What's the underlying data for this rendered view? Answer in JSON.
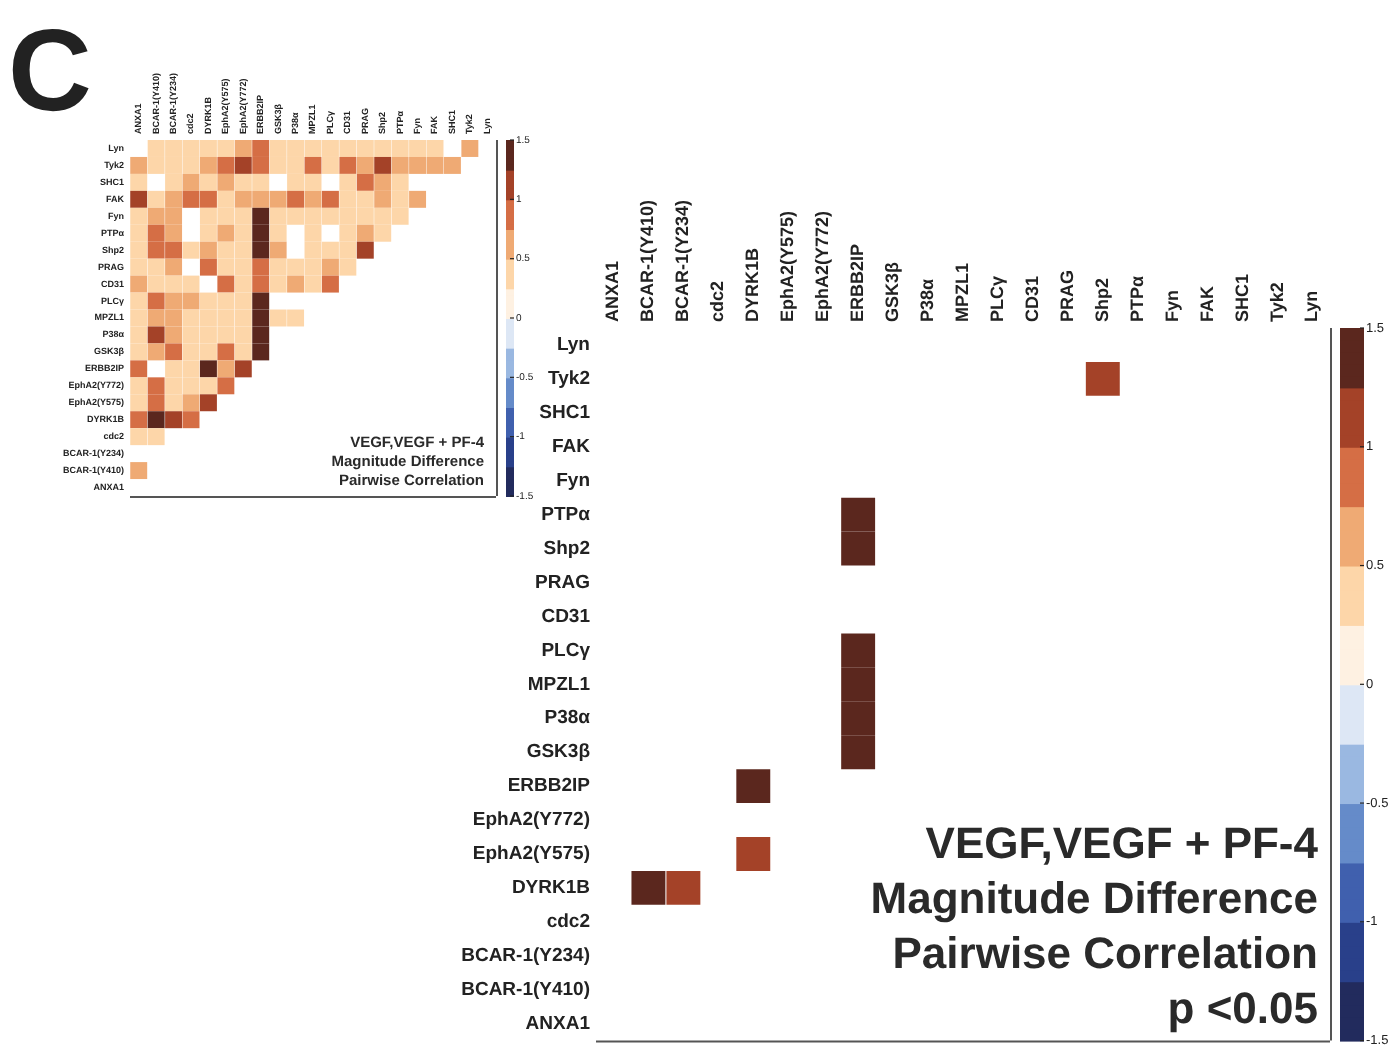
{
  "chart_data": [
    {
      "type": "heatmap",
      "title": "C",
      "categories": [
        "ANXA1",
        "BCAR-1(Y410)",
        "BCAR-1(Y234)",
        "cdc2",
        "DYRK1B",
        "EphA2(Y575)",
        "EphA2(Y772)",
        "ERBB2IP",
        "GSK3β",
        "P38α",
        "MPZL1",
        "PLCγ",
        "CD31",
        "PRAG",
        "Shp2",
        "PTPα",
        "Fyn",
        "FAK",
        "SHC1",
        "Tyk2",
        "Lyn"
      ],
      "y_categories": [
        "Lyn",
        "Tyk2",
        "SHC1",
        "FAK",
        "Fyn",
        "PTPα",
        "Shp2",
        "PRAG",
        "CD31",
        "PLCγ",
        "MPZL1",
        "P38α",
        "GSK3β",
        "ERBB2IP",
        "EphA2(Y772)",
        "EphA2(Y575)",
        "DYRK1B",
        "cdc2",
        "BCAR-1(Y234)",
        "BCAR-1(Y410)",
        "ANXA1"
      ],
      "cells": [
        [
          null,
          0.3,
          0.3,
          0.3,
          0.3,
          0.3,
          0.6,
          0.9,
          0.3,
          0.3,
          0.3,
          0.3,
          0.3,
          0.3,
          0.3,
          0.3,
          0.3,
          0.3,
          null,
          0.6,
          null
        ],
        [
          0.6,
          0.3,
          0.3,
          0.3,
          0.6,
          0.9,
          1.2,
          0.9,
          0.3,
          0.3,
          0.9,
          0.3,
          0.9,
          0.6,
          1.1,
          0.6,
          0.6,
          0.6,
          0.6,
          null,
          null
        ],
        [
          0.3,
          null,
          0.3,
          0.6,
          0.3,
          0.6,
          0.3,
          0.3,
          null,
          0.3,
          0.3,
          null,
          0.3,
          0.9,
          0.6,
          0.3,
          null,
          null,
          null,
          null,
          null
        ],
        [
          1.2,
          0.3,
          0.6,
          0.9,
          0.9,
          0.3,
          0.6,
          0.6,
          0.6,
          0.9,
          0.6,
          0.9,
          0.3,
          0.3,
          0.6,
          0.3,
          0.6,
          null,
          null,
          null,
          null
        ],
        [
          0.3,
          0.6,
          0.6,
          null,
          0.3,
          0.3,
          0.3,
          1.4,
          0.3,
          0.3,
          0.3,
          0.3,
          0.3,
          0.3,
          0.3,
          0.3,
          null,
          null,
          null,
          null,
          null
        ],
        [
          0.3,
          0.9,
          0.6,
          null,
          0.3,
          0.6,
          0.3,
          1.4,
          0.3,
          null,
          0.3,
          null,
          0.3,
          0.6,
          0.3,
          null,
          null,
          null,
          null,
          null,
          null
        ],
        [
          0.3,
          0.9,
          0.9,
          0.3,
          0.6,
          0.3,
          0.3,
          1.4,
          0.6,
          null,
          0.3,
          0.3,
          0.3,
          1.2,
          null,
          null,
          null,
          null,
          null,
          null,
          null
        ],
        [
          0.3,
          0.3,
          0.6,
          null,
          0.9,
          0.3,
          0.3,
          0.9,
          0.3,
          0.3,
          0.3,
          0.6,
          0.3,
          null,
          null,
          null,
          null,
          null,
          null,
          null,
          null
        ],
        [
          0.6,
          0.3,
          0.3,
          0.3,
          null,
          0.9,
          0.3,
          0.9,
          0.3,
          0.6,
          0.3,
          0.9,
          null,
          null,
          null,
          null,
          null,
          null,
          null,
          null,
          null
        ],
        [
          0.3,
          0.9,
          0.6,
          0.6,
          0.3,
          0.3,
          0.3,
          1.4,
          null,
          null,
          null,
          null,
          null,
          null,
          null,
          null,
          null,
          null,
          null,
          null,
          null
        ],
        [
          0.3,
          0.6,
          0.6,
          0.3,
          0.3,
          0.3,
          0.3,
          1.4,
          0.3,
          0.3,
          null,
          null,
          null,
          null,
          null,
          null,
          null,
          null,
          null,
          null,
          null
        ],
        [
          0.3,
          1.2,
          0.6,
          0.3,
          0.3,
          0.3,
          0.3,
          1.4,
          null,
          null,
          null,
          null,
          null,
          null,
          null,
          null,
          null,
          null,
          null,
          null,
          null
        ],
        [
          0.3,
          0.6,
          0.9,
          0.3,
          0.3,
          0.9,
          0.3,
          1.4,
          null,
          null,
          null,
          null,
          null,
          null,
          null,
          null,
          null,
          null,
          null,
          null,
          null
        ],
        [
          0.9,
          null,
          0.3,
          0.3,
          1.4,
          0.6,
          1.2,
          null,
          null,
          null,
          null,
          null,
          null,
          null,
          null,
          null,
          null,
          null,
          null,
          null,
          null
        ],
        [
          0.3,
          0.9,
          0.3,
          0.3,
          0.3,
          0.9,
          null,
          null,
          null,
          null,
          null,
          null,
          null,
          null,
          null,
          null,
          null,
          null,
          null,
          null,
          null
        ],
        [
          0.3,
          0.9,
          0.3,
          0.6,
          1.2,
          null,
          null,
          null,
          null,
          null,
          null,
          null,
          null,
          null,
          null,
          null,
          null,
          null,
          null,
          null,
          null
        ],
        [
          0.9,
          1.4,
          1.2,
          0.9,
          null,
          null,
          null,
          null,
          null,
          null,
          null,
          null,
          null,
          null,
          null,
          null,
          null,
          null,
          null,
          null,
          null
        ],
        [
          0.3,
          0.3,
          null,
          null,
          null,
          null,
          null,
          null,
          null,
          null,
          null,
          null,
          null,
          null,
          null,
          null,
          null,
          null,
          null,
          null,
          null
        ],
        [
          null,
          null,
          null,
          null,
          null,
          null,
          null,
          null,
          null,
          null,
          null,
          null,
          null,
          null,
          null,
          null,
          null,
          null,
          null,
          null,
          null
        ],
        [
          0.6,
          null,
          null,
          null,
          null,
          null,
          null,
          null,
          null,
          null,
          null,
          null,
          null,
          null,
          null,
          null,
          null,
          null,
          null,
          null,
          null
        ],
        [
          null,
          null,
          null,
          null,
          null,
          null,
          null,
          null,
          null,
          null,
          null,
          null,
          null,
          null,
          null,
          null,
          null,
          null,
          null,
          null,
          null
        ]
      ],
      "clim": [
        -1.5,
        1.5
      ],
      "cticks": [
        -1.5,
        -1,
        -0.5,
        0,
        0.5,
        1,
        1.5
      ],
      "annotations": [
        "VEGF,VEGF + PF-4",
        "Magnitude Difference",
        "Pairwise Correlation"
      ]
    },
    {
      "type": "heatmap",
      "categories": [
        "ANXA1",
        "BCAR-1(Y410)",
        "BCAR-1(Y234)",
        "cdc2",
        "DYRK1B",
        "EphA2(Y575)",
        "EphA2(Y772)",
        "ERBB2IP",
        "GSK3β",
        "P38α",
        "MPZL1",
        "PLCγ",
        "CD31",
        "PRAG",
        "Shp2",
        "PTPα",
        "Fyn",
        "FAK",
        "SHC1",
        "Tyk2",
        "Lyn"
      ],
      "y_categories": [
        "Lyn",
        "Tyk2",
        "SHC1",
        "FAK",
        "Fyn",
        "PTPα",
        "Shp2",
        "PRAG",
        "CD31",
        "PLCγ",
        "MPZL1",
        "P38α",
        "GSK3β",
        "ERBB2IP",
        "EphA2(Y772)",
        "EphA2(Y575)",
        "DYRK1B",
        "cdc2",
        "BCAR-1(Y234)",
        "BCAR-1(Y410)",
        "ANXA1"
      ],
      "cells": [
        [
          null,
          null,
          null,
          null,
          null,
          null,
          null,
          null,
          null,
          null,
          null,
          null,
          null,
          null,
          null,
          null,
          null,
          null,
          null,
          null,
          null
        ],
        [
          null,
          null,
          null,
          null,
          null,
          null,
          null,
          null,
          null,
          null,
          null,
          null,
          null,
          null,
          1.1,
          null,
          null,
          null,
          null,
          null,
          null
        ],
        [
          null,
          null,
          null,
          null,
          null,
          null,
          null,
          null,
          null,
          null,
          null,
          null,
          null,
          null,
          null,
          null,
          null,
          null,
          null,
          null,
          null
        ],
        [
          null,
          null,
          null,
          null,
          null,
          null,
          null,
          null,
          null,
          null,
          null,
          null,
          null,
          null,
          null,
          null,
          null,
          null,
          null,
          null,
          null
        ],
        [
          null,
          null,
          null,
          null,
          null,
          null,
          null,
          null,
          null,
          null,
          null,
          null,
          null,
          null,
          null,
          null,
          null,
          null,
          null,
          null,
          null
        ],
        [
          null,
          null,
          null,
          null,
          null,
          null,
          null,
          1.4,
          null,
          null,
          null,
          null,
          null,
          null,
          null,
          null,
          null,
          null,
          null,
          null,
          null
        ],
        [
          null,
          null,
          null,
          null,
          null,
          null,
          null,
          1.4,
          null,
          null,
          null,
          null,
          null,
          null,
          null,
          null,
          null,
          null,
          null,
          null,
          null
        ],
        [
          null,
          null,
          null,
          null,
          null,
          null,
          null,
          null,
          null,
          null,
          null,
          null,
          null,
          null,
          null,
          null,
          null,
          null,
          null,
          null,
          null
        ],
        [
          null,
          null,
          null,
          null,
          null,
          null,
          null,
          null,
          null,
          null,
          null,
          null,
          null,
          null,
          null,
          null,
          null,
          null,
          null,
          null,
          null
        ],
        [
          null,
          null,
          null,
          null,
          null,
          null,
          null,
          1.4,
          null,
          null,
          null,
          null,
          null,
          null,
          null,
          null,
          null,
          null,
          null,
          null,
          null
        ],
        [
          null,
          null,
          null,
          null,
          null,
          null,
          null,
          1.4,
          null,
          null,
          null,
          null,
          null,
          null,
          null,
          null,
          null,
          null,
          null,
          null,
          null
        ],
        [
          null,
          null,
          null,
          null,
          null,
          null,
          null,
          1.4,
          null,
          null,
          null,
          null,
          null,
          null,
          null,
          null,
          null,
          null,
          null,
          null,
          null
        ],
        [
          null,
          null,
          null,
          null,
          null,
          null,
          null,
          1.4,
          null,
          null,
          null,
          null,
          null,
          null,
          null,
          null,
          null,
          null,
          null,
          null,
          null
        ],
        [
          null,
          null,
          null,
          null,
          1.4,
          null,
          null,
          null,
          null,
          null,
          null,
          null,
          null,
          null,
          null,
          null,
          null,
          null,
          null,
          null,
          null
        ],
        [
          null,
          null,
          null,
          null,
          null,
          null,
          null,
          null,
          null,
          null,
          null,
          null,
          null,
          null,
          null,
          null,
          null,
          null,
          null,
          null,
          null
        ],
        [
          null,
          null,
          null,
          null,
          1.1,
          null,
          null,
          null,
          null,
          null,
          null,
          null,
          null,
          null,
          null,
          null,
          null,
          null,
          null,
          null,
          null
        ],
        [
          null,
          1.4,
          1.1,
          null,
          null,
          null,
          null,
          null,
          null,
          null,
          null,
          null,
          null,
          null,
          null,
          null,
          null,
          null,
          null,
          null,
          null
        ],
        [
          null,
          null,
          null,
          null,
          null,
          null,
          null,
          null,
          null,
          null,
          null,
          null,
          null,
          null,
          null,
          null,
          null,
          null,
          null,
          null,
          null
        ],
        [
          null,
          null,
          null,
          null,
          null,
          null,
          null,
          null,
          null,
          null,
          null,
          null,
          null,
          null,
          null,
          null,
          null,
          null,
          null,
          null,
          null
        ],
        [
          null,
          null,
          null,
          null,
          null,
          null,
          null,
          null,
          null,
          null,
          null,
          null,
          null,
          null,
          null,
          null,
          null,
          null,
          null,
          null,
          null
        ],
        [
          null,
          null,
          null,
          null,
          null,
          null,
          null,
          null,
          null,
          null,
          null,
          null,
          null,
          null,
          null,
          null,
          null,
          null,
          null,
          null,
          null
        ]
      ],
      "clim": [
        -1.5,
        1.5
      ],
      "cticks": [
        -1.5,
        -1,
        -0.5,
        0,
        0.5,
        1,
        1.5
      ],
      "annotations": [
        "VEGF,VEGF + PF-4",
        "Magnitude Difference",
        "Pairwise Correlation",
        "p <0.05"
      ]
    }
  ]
}
